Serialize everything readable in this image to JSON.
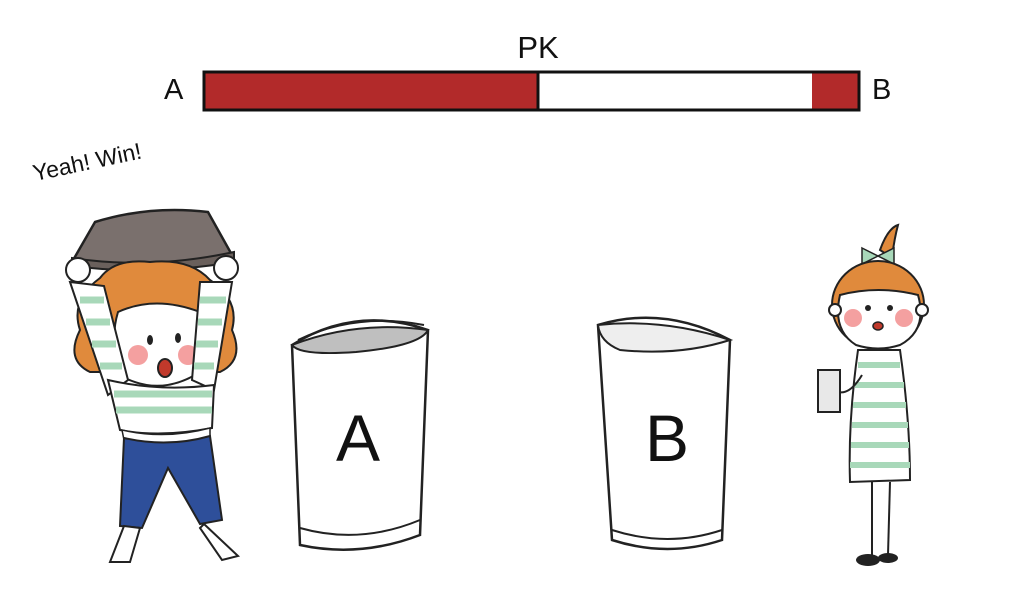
{
  "header": {
    "title": "PK",
    "left_label": "A",
    "right_label": "B"
  },
  "progress": {
    "a_share": 0.51,
    "b_share": 0.07,
    "fill_color": "#b22a2a",
    "empty_color": "#ffffff"
  },
  "speech": "Yeah! Win!",
  "buckets": [
    {
      "label": "A",
      "level": "near full"
    },
    {
      "label": "B",
      "level": "low"
    }
  ],
  "colors": {
    "stripe": "#a8d8b9",
    "hair": "#e08a3c",
    "pants": "#2e4f9a",
    "hat": "#7a706d",
    "cheek": "#f4a0a0"
  }
}
